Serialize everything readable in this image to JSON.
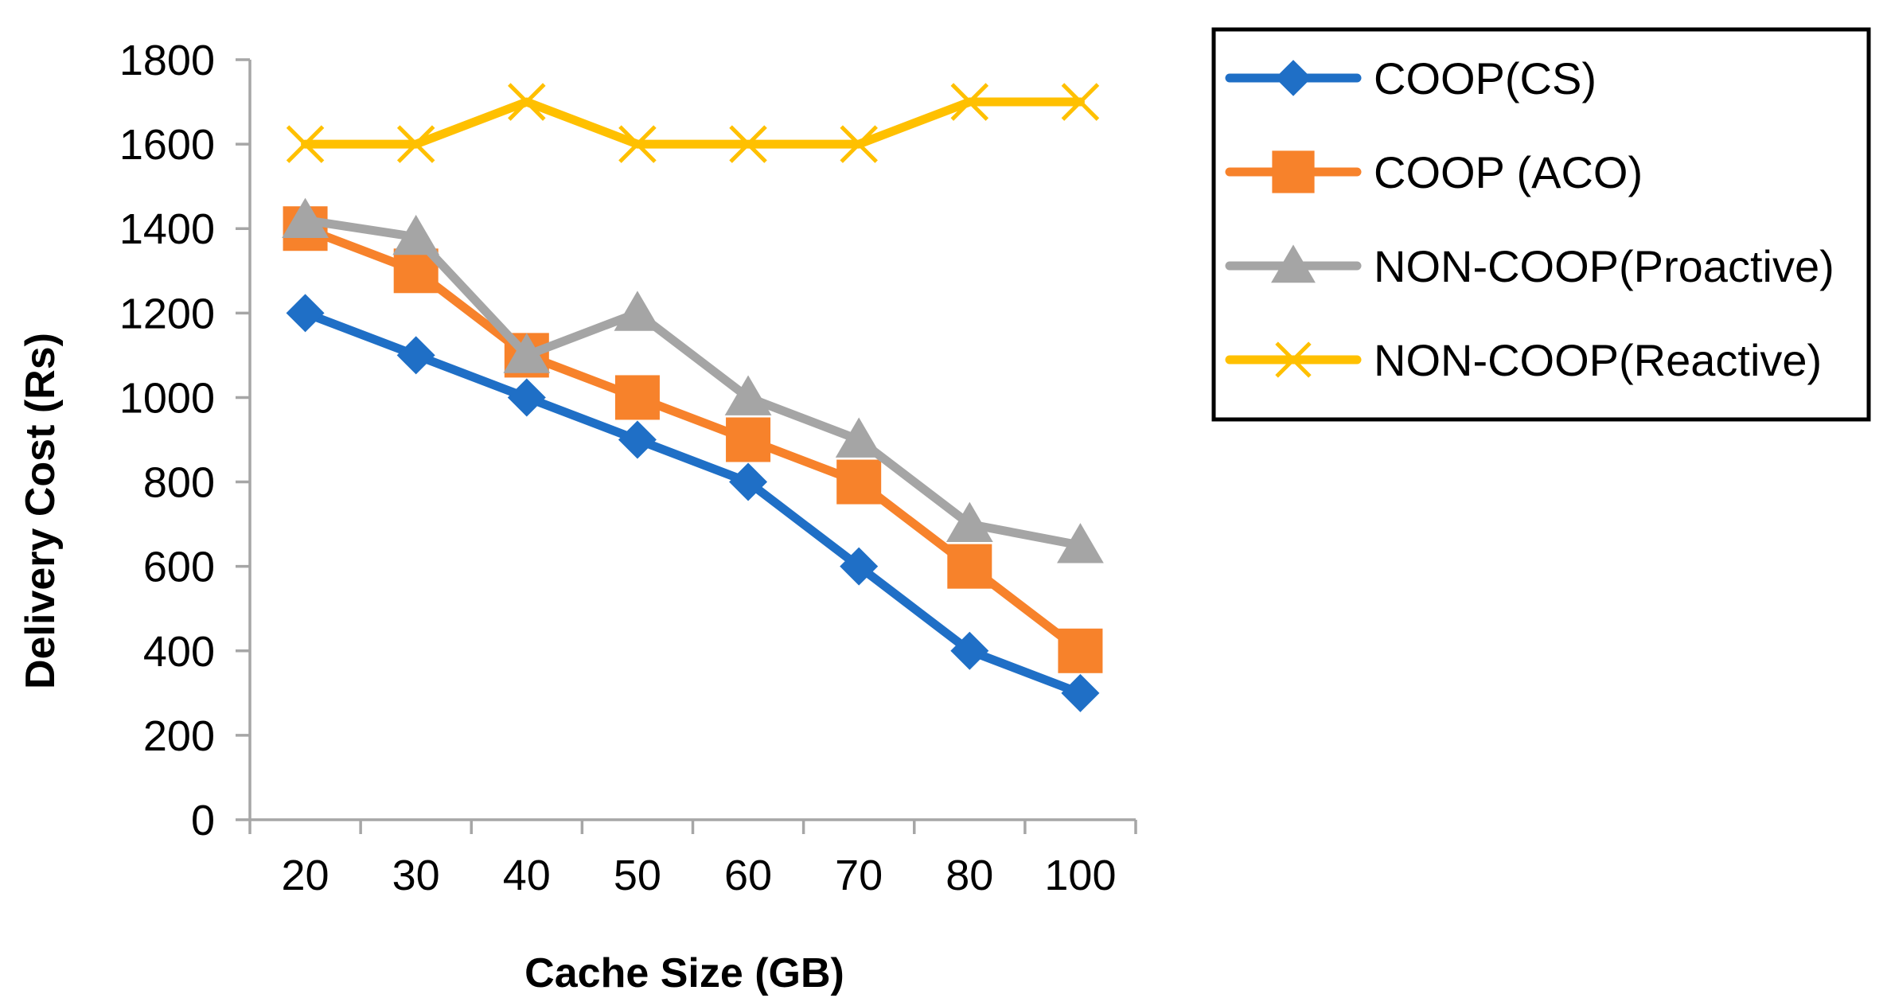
{
  "chart_data": {
    "type": "line",
    "title": "",
    "xlabel": "Cache Size (GB)",
    "ylabel": "Delivery Cost (Rs)",
    "categories": [
      "20",
      "30",
      "40",
      "50",
      "60",
      "70",
      "80",
      "100"
    ],
    "ylim": [
      0,
      1800
    ],
    "yticks": [
      0,
      200,
      400,
      600,
      800,
      1000,
      1200,
      1400,
      1600,
      1800
    ],
    "grid": false,
    "legend_position": "right",
    "series": [
      {
        "name": "COOP(CS)",
        "color": "#1f6fc6",
        "marker": "diamond",
        "values": [
          1200,
          1100,
          1000,
          900,
          800,
          600,
          400,
          300
        ]
      },
      {
        "name": "COOP (ACO)",
        "color": "#f7822b",
        "marker": "square",
        "values": [
          1400,
          1300,
          1100,
          1000,
          900,
          800,
          600,
          400
        ]
      },
      {
        "name": "NON-COOP(Proactive)",
        "color": "#a5a5a5",
        "marker": "triangle",
        "values": [
          1420,
          1380,
          1100,
          1200,
          1000,
          900,
          700,
          650
        ]
      },
      {
        "name": "NON-COOP(Reactive)",
        "color": "#ffc000",
        "marker": "x",
        "values": [
          1600,
          1600,
          1700,
          1600,
          1600,
          1600,
          1700,
          1700
        ]
      }
    ]
  }
}
